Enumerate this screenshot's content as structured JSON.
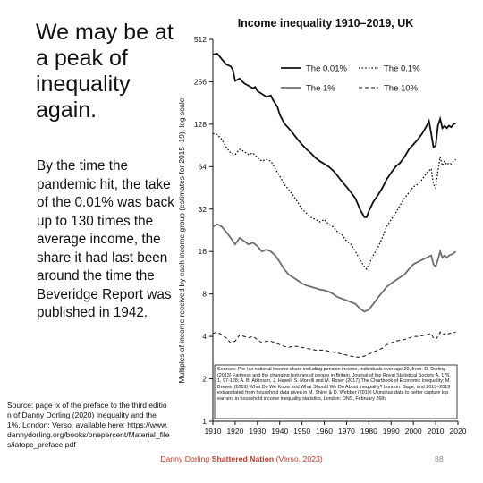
{
  "slide": {
    "heading": "We may be at a peak of inequality again.",
    "body": "By the time the pandemic hit, the take of the 0.01% was back up to 130 times the average income, the share it had last been around the time the Beveridge Report was published in 1942.",
    "source": "Source: page ix of the preface to the third edition of Danny Dorling (2020) Inequality and the 1%, London: Verso, available here: https://www.dannydorling.org/books/onepercent/Material_files/iatopc_preface.pdf",
    "footer_author": "Danny Dorling",
    "footer_book": "Shattered Nation",
    "footer_rest": "(Verso, 2023)",
    "page_number": "88"
  },
  "chart_data": {
    "type": "line",
    "title": "Income inequality 1910–2019, UK",
    "ylabel": "Multiples of income received by each income group (estimates for 2015–19), log scale",
    "xlabel": "",
    "xlim": [
      1910,
      2020
    ],
    "ylim": [
      1,
      512
    ],
    "yscale": "log2",
    "x_ticks": [
      1910,
      1920,
      1930,
      1940,
      1950,
      1960,
      1970,
      1980,
      1990,
      2000,
      2010,
      2020
    ],
    "y_ticks": [
      1,
      2,
      4,
      8,
      16,
      32,
      64,
      128,
      256,
      512
    ],
    "legend_position": "top-right",
    "series": [
      {
        "name": "The 0.01%",
        "style": "solid-thick",
        "points": [
          [
            1910,
            400
          ],
          [
            1912,
            405
          ],
          [
            1914,
            370
          ],
          [
            1916,
            340
          ],
          [
            1918,
            330
          ],
          [
            1919,
            310
          ],
          [
            1920,
            260
          ],
          [
            1922,
            270
          ],
          [
            1924,
            250
          ],
          [
            1926,
            240
          ],
          [
            1928,
            230
          ],
          [
            1929,
            235
          ],
          [
            1930,
            220
          ],
          [
            1932,
            210
          ],
          [
            1934,
            200
          ],
          [
            1936,
            205
          ],
          [
            1937,
            190
          ],
          [
            1938,
            180
          ],
          [
            1939,
            170
          ],
          [
            1940,
            150
          ],
          [
            1941,
            140
          ],
          [
            1942,
            130
          ],
          [
            1944,
            120
          ],
          [
            1946,
            110
          ],
          [
            1948,
            100
          ],
          [
            1950,
            92
          ],
          [
            1952,
            85
          ],
          [
            1954,
            80
          ],
          [
            1956,
            74
          ],
          [
            1958,
            70
          ],
          [
            1960,
            67
          ],
          [
            1962,
            64
          ],
          [
            1964,
            60
          ],
          [
            1966,
            55
          ],
          [
            1968,
            50
          ],
          [
            1970,
            46
          ],
          [
            1972,
            42
          ],
          [
            1974,
            38
          ],
          [
            1976,
            32
          ],
          [
            1978,
            28
          ],
          [
            1979,
            28
          ],
          [
            1980,
            31
          ],
          [
            1982,
            36
          ],
          [
            1984,
            40
          ],
          [
            1986,
            45
          ],
          [
            1988,
            52
          ],
          [
            1990,
            58
          ],
          [
            1992,
            64
          ],
          [
            1994,
            68
          ],
          [
            1996,
            75
          ],
          [
            1998,
            85
          ],
          [
            2000,
            92
          ],
          [
            2002,
            100
          ],
          [
            2004,
            110
          ],
          [
            2006,
            125
          ],
          [
            2007,
            135
          ],
          [
            2008,
            110
          ],
          [
            2009,
            88
          ],
          [
            2010,
            90
          ],
          [
            2011,
            125
          ],
          [
            2012,
            140
          ],
          [
            2013,
            120
          ],
          [
            2014,
            125
          ],
          [
            2015,
            120
          ],
          [
            2016,
            125
          ],
          [
            2017,
            122
          ],
          [
            2018,
            128
          ],
          [
            2019,
            130
          ]
        ]
      },
      {
        "name": "The 0.1%",
        "style": "dotted",
        "points": [
          [
            1910,
            110
          ],
          [
            1912,
            108
          ],
          [
            1914,
            100
          ],
          [
            1916,
            88
          ],
          [
            1918,
            80
          ],
          [
            1920,
            78
          ],
          [
            1922,
            85
          ],
          [
            1924,
            82
          ],
          [
            1926,
            78
          ],
          [
            1928,
            80
          ],
          [
            1930,
            74
          ],
          [
            1932,
            70
          ],
          [
            1934,
            72
          ],
          [
            1936,
            70
          ],
          [
            1938,
            62
          ],
          [
            1940,
            55
          ],
          [
            1942,
            48
          ],
          [
            1944,
            44
          ],
          [
            1946,
            40
          ],
          [
            1948,
            36
          ],
          [
            1950,
            32
          ],
          [
            1952,
            30
          ],
          [
            1954,
            28
          ],
          [
            1956,
            27
          ],
          [
            1958,
            26
          ],
          [
            1960,
            27
          ],
          [
            1962,
            25
          ],
          [
            1964,
            24
          ],
          [
            1966,
            22
          ],
          [
            1968,
            21
          ],
          [
            1970,
            19
          ],
          [
            1972,
            18
          ],
          [
            1974,
            16
          ],
          [
            1976,
            14
          ],
          [
            1978,
            12.5
          ],
          [
            1979,
            12
          ],
          [
            1980,
            13
          ],
          [
            1982,
            15
          ],
          [
            1984,
            17
          ],
          [
            1986,
            20
          ],
          [
            1988,
            24
          ],
          [
            1990,
            27
          ],
          [
            1992,
            30
          ],
          [
            1994,
            34
          ],
          [
            1996,
            38
          ],
          [
            1998,
            42
          ],
          [
            2000,
            46
          ],
          [
            2002,
            48
          ],
          [
            2004,
            52
          ],
          [
            2006,
            58
          ],
          [
            2008,
            62
          ],
          [
            2009,
            48
          ],
          [
            2010,
            45
          ],
          [
            2011,
            60
          ],
          [
            2012,
            75
          ],
          [
            2013,
            65
          ],
          [
            2014,
            70
          ],
          [
            2015,
            66
          ],
          [
            2016,
            68
          ],
          [
            2017,
            67
          ],
          [
            2018,
            70
          ],
          [
            2019,
            72
          ]
        ]
      },
      {
        "name": "The 1%",
        "style": "solid-grey",
        "points": [
          [
            1910,
            24
          ],
          [
            1912,
            25
          ],
          [
            1914,
            24
          ],
          [
            1916,
            22
          ],
          [
            1918,
            20
          ],
          [
            1920,
            18
          ],
          [
            1922,
            20
          ],
          [
            1924,
            19
          ],
          [
            1926,
            18
          ],
          [
            1928,
            18.5
          ],
          [
            1930,
            17.5
          ],
          [
            1932,
            16
          ],
          [
            1934,
            16.5
          ],
          [
            1936,
            16
          ],
          [
            1938,
            15
          ],
          [
            1940,
            13.5
          ],
          [
            1942,
            12
          ],
          [
            1944,
            11
          ],
          [
            1946,
            10.5
          ],
          [
            1948,
            10
          ],
          [
            1950,
            9.5
          ],
          [
            1952,
            9.2
          ],
          [
            1954,
            9
          ],
          [
            1956,
            8.8
          ],
          [
            1958,
            8.6
          ],
          [
            1960,
            8.5
          ],
          [
            1962,
            8.3
          ],
          [
            1964,
            8
          ],
          [
            1966,
            7.6
          ],
          [
            1968,
            7.4
          ],
          [
            1970,
            7.2
          ],
          [
            1972,
            7
          ],
          [
            1974,
            6.8
          ],
          [
            1976,
            6.3
          ],
          [
            1978,
            6
          ],
          [
            1980,
            6.2
          ],
          [
            1982,
            6.8
          ],
          [
            1984,
            7.5
          ],
          [
            1986,
            8.2
          ],
          [
            1988,
            9
          ],
          [
            1990,
            9.5
          ],
          [
            1992,
            10
          ],
          [
            1994,
            10.5
          ],
          [
            1996,
            11
          ],
          [
            1998,
            12
          ],
          [
            2000,
            13
          ],
          [
            2002,
            13.5
          ],
          [
            2004,
            14
          ],
          [
            2006,
            14.5
          ],
          [
            2008,
            15
          ],
          [
            2009,
            13
          ],
          [
            2010,
            12.5
          ],
          [
            2011,
            14
          ],
          [
            2012,
            16
          ],
          [
            2013,
            14.5
          ],
          [
            2014,
            15
          ],
          [
            2015,
            14.5
          ],
          [
            2016,
            15
          ],
          [
            2017,
            15.2
          ],
          [
            2018,
            15.5
          ],
          [
            2019,
            16
          ]
        ]
      },
      {
        "name": "The 10%",
        "style": "dashed",
        "points": [
          [
            1910,
            4.2
          ],
          [
            1912,
            4.3
          ],
          [
            1914,
            4.1
          ],
          [
            1916,
            3.9
          ],
          [
            1918,
            3.6
          ],
          [
            1920,
            3.7
          ],
          [
            1922,
            4.1
          ],
          [
            1924,
            4
          ],
          [
            1926,
            3.9
          ],
          [
            1928,
            4
          ],
          [
            1930,
            3.8
          ],
          [
            1932,
            3.6
          ],
          [
            1934,
            3.7
          ],
          [
            1936,
            3.7
          ],
          [
            1938,
            3.6
          ],
          [
            1940,
            3.5
          ],
          [
            1942,
            3.4
          ],
          [
            1944,
            3.35
          ],
          [
            1946,
            3.4
          ],
          [
            1948,
            3.4
          ],
          [
            1950,
            3.35
          ],
          [
            1952,
            3.3
          ],
          [
            1954,
            3.25
          ],
          [
            1956,
            3.2
          ],
          [
            1958,
            3.2
          ],
          [
            1960,
            3.2
          ],
          [
            1962,
            3.15
          ],
          [
            1964,
            3.1
          ],
          [
            1966,
            3.05
          ],
          [
            1968,
            3
          ],
          [
            1970,
            2.95
          ],
          [
            1972,
            2.9
          ],
          [
            1974,
            2.85
          ],
          [
            1976,
            2.85
          ],
          [
            1978,
            2.9
          ],
          [
            1980,
            3
          ],
          [
            1982,
            3.1
          ],
          [
            1984,
            3.2
          ],
          [
            1986,
            3.3
          ],
          [
            1988,
            3.5
          ],
          [
            1990,
            3.6
          ],
          [
            1992,
            3.7
          ],
          [
            1994,
            3.75
          ],
          [
            1996,
            3.8
          ],
          [
            1998,
            3.9
          ],
          [
            2000,
            4
          ],
          [
            2002,
            4
          ],
          [
            2004,
            4.05
          ],
          [
            2006,
            4.1
          ],
          [
            2008,
            4.2
          ],
          [
            2009,
            3.9
          ],
          [
            2010,
            3.8
          ],
          [
            2011,
            4
          ],
          [
            2012,
            4.3
          ],
          [
            2013,
            4.1
          ],
          [
            2014,
            4.2
          ],
          [
            2015,
            4.1
          ],
          [
            2016,
            4.2
          ],
          [
            2017,
            4.2
          ],
          [
            2018,
            4.25
          ],
          [
            2019,
            4.3
          ]
        ]
      }
    ],
    "annotation": "Sources: Pre-tax national income share including pension income, individuals over age 20, from: D. Dorling (2013) Fairness and the changing fortunes of people in Britain, Journal of the Royal Statistical Society A, 176, 1, 97-128; A. B. Atkinson, J. Hasell, S. Morelli and M. Roser (2017) The Chartbook of Economic Inequality; M. Brewer (2019) What Do We Know and What Should We Do About Inequality? London: Sage; and 2015–2019 extrapolated from household data given in M. Shine & D. Webber (2019) Using tax data to better capture top earners in household income inequality statistics, London: ONS, February 26th."
  }
}
